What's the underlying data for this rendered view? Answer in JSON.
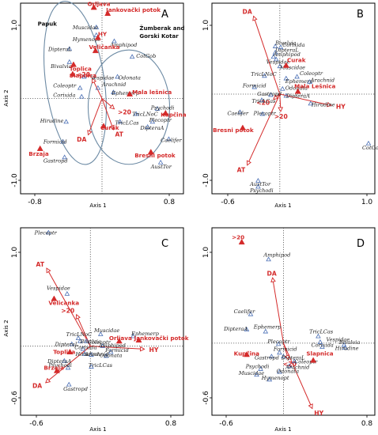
{
  "chart_data": [
    {
      "panel": "A",
      "type": "scatter",
      "xlabel": "Axis 1",
      "ylabel": "Axis 2",
      "xticks": [
        "-0.8",
        "0.8"
      ],
      "yticks": [
        "1.0",
        "-1.0"
      ],
      "xlim": [
        -1.0,
        1.0
      ],
      "ylim": [
        -1.1,
        1.1
      ],
      "region_labels": [
        {
          "text": "Papuk",
          "x": -0.79,
          "y": 0.84
        },
        {
          "text": "Žumberak and",
          "x": 0.46,
          "y": 0.79
        },
        {
          "text": "Gorski Kotar",
          "x": 0.46,
          "y": 0.7
        }
      ],
      "sites": [
        {
          "name": "Orljava",
          "x": -0.1,
          "y": 1.05,
          "lx": -0.18,
          "ly": 1.07
        },
        {
          "name": "Jankovački potok",
          "x": 0.07,
          "y": 0.98,
          "lx": 0.05,
          "ly": 1.0
        },
        {
          "name": "HY",
          "x": -0.05,
          "y": 0.7,
          "lx": -0.05,
          "ly": 0.72
        },
        {
          "name": "Veličanka",
          "x": -0.08,
          "y": 0.55,
          "lx": -0.16,
          "ly": 0.57
        },
        {
          "name": "Toplica",
          "x": -0.35,
          "y": 0.39,
          "lx": -0.4,
          "ly": 0.32
        },
        {
          "name": "Slapnica",
          "x": -0.36,
          "y": 0.28,
          "lx": -0.4,
          "ly": 0.24
        },
        {
          "name": "Mala lešnica",
          "x": 0.34,
          "y": 0.05,
          "lx": 0.37,
          "ly": 0.05
        },
        {
          "name": "Kupčina",
          "x": 0.78,
          "y": -0.17,
          "lx": 0.72,
          "ly": -0.21
        },
        {
          "name": "Curak",
          "x": 0.02,
          "y": -0.32,
          "lx": -0.02,
          "ly": -0.36
        },
        {
          "name": "Bresni potok",
          "x": 0.6,
          "y": -0.62,
          "lx": 0.4,
          "ly": -0.68
        },
        {
          "name": "Brzaja",
          "x": -0.76,
          "y": -0.58,
          "lx": -0.9,
          "ly": -0.66
        }
      ],
      "env_labels": [
        {
          "name": "<20",
          "x": -0.12,
          "y": 0.23
        },
        {
          "name": ">20",
          "x": 0.15,
          "y": -0.12
        },
        {
          "name": "AT",
          "x": 0.14,
          "y": -0.36
        },
        {
          "name": "DA",
          "x": -0.17,
          "y": -0.42
        }
      ],
      "taxa": [
        {
          "name": "Muscidae",
          "x": -0.07,
          "y": 0.82,
          "lx": -0.36,
          "ly": 0.8
        },
        {
          "name": "Hymenopt",
          "x": -0.07,
          "y": 0.73,
          "lx": -0.36,
          "ly": 0.66
        },
        {
          "name": "Amphipod",
          "x": 0.15,
          "y": 0.66,
          "lx": 0.1,
          "ly": 0.6
        },
        {
          "name": "DipteraL",
          "x": -0.4,
          "y": 0.57,
          "lx": -0.66,
          "ly": 0.55
        },
        {
          "name": "Bivalvia",
          "x": -0.4,
          "y": 0.42,
          "lx": -0.63,
          "ly": 0.35
        },
        {
          "name": "Vespidae",
          "x": -0.22,
          "y": 0.25,
          "lx": -0.14,
          "ly": 0.22
        },
        {
          "name": "Odonata",
          "x": 0.19,
          "y": 0.25,
          "lx": 0.2,
          "ly": 0.22
        },
        {
          "name": "CotGob",
          "x": 0.37,
          "y": 0.48,
          "lx": 0.42,
          "ly": 0.47
        },
        {
          "name": "Coleoptr",
          "x": -0.27,
          "y": 0.12,
          "lx": -0.6,
          "ly": 0.13
        },
        {
          "name": "Arachnid",
          "x": -0.05,
          "y": 0.12,
          "lx": 0.0,
          "ly": 0.14
        },
        {
          "name": "Corixida",
          "x": -0.25,
          "y": 0.02,
          "lx": -0.6,
          "ly": 0.02
        },
        {
          "name": "Ephemerp",
          "x": 0.14,
          "y": 0.07,
          "lx": 0.12,
          "ly": 0.04
        },
        {
          "name": "Psychodi",
          "x": 0.68,
          "y": -0.12,
          "lx": 0.6,
          "ly": -0.13
        },
        {
          "name": "TricLNoC",
          "x": 0.42,
          "y": -0.18,
          "lx": 0.37,
          "ly": -0.2
        },
        {
          "name": "Plecoptr",
          "x": 0.62,
          "y": -0.27,
          "lx": 0.58,
          "ly": -0.27
        },
        {
          "name": "Hirudine",
          "x": -0.44,
          "y": -0.27,
          "lx": -0.76,
          "ly": -0.28
        },
        {
          "name": "TricLCas",
          "x": 0.22,
          "y": -0.27,
          "lx": 0.16,
          "ly": -0.3
        },
        {
          "name": "DipteraA",
          "x": 0.56,
          "y": -0.33,
          "lx": 0.47,
          "ly": -0.36
        },
        {
          "name": "Caelifer",
          "x": 0.82,
          "y": -0.47,
          "lx": 0.72,
          "ly": -0.5
        },
        {
          "name": "Formicid",
          "x": -0.48,
          "y": -0.5,
          "lx": -0.72,
          "ly": -0.52
        },
        {
          "name": "Gastropd",
          "x": -0.46,
          "y": -0.68,
          "lx": -0.72,
          "ly": -0.74
        },
        {
          "name": "AustTor",
          "x": 0.72,
          "y": -0.74,
          "lx": 0.6,
          "ly": -0.81
        }
      ]
    },
    {
      "panel": "B",
      "type": "scatter",
      "xlabel": "Axis 1",
      "ylabel": "",
      "xticks": [
        "-0.6",
        "1.0"
      ],
      "yticks": [
        "1.0",
        "-1.0"
      ],
      "xlim": [
        -0.75,
        1.05
      ],
      "ylim": [
        -1.15,
        1.05
      ],
      "sites": [
        {
          "name": "Curak",
          "x": 0.07,
          "y": 0.33,
          "lx": 0.08,
          "ly": 0.37
        },
        {
          "name": "Mala Lešnica",
          "x": 0.2,
          "y": 0.03,
          "lx": 0.16,
          "ly": 0.07
        },
        {
          "name": "Bresni potok",
          "x": -0.41,
          "y": -0.39,
          "lx": -0.74,
          "ly": -0.44
        }
      ],
      "env_labels": [
        {
          "name": "DA",
          "x": -0.29,
          "y": 0.9
        },
        {
          "name": "<20",
          "x": -0.07,
          "y": -0.06
        },
        {
          "name": ">20",
          "x": 0.01,
          "y": -0.2
        },
        {
          "name": "HY",
          "x": 0.57,
          "y": -0.13
        },
        {
          "name": "AT",
          "x": -0.36,
          "y": -0.82
        }
      ],
      "taxa": [
        {
          "name": "Bivalvia",
          "x": -0.05,
          "y": 0.55,
          "lx": -0.05,
          "ly": 0.57
        },
        {
          "name": "DipteraL",
          "x": -0.05,
          "y": 0.48,
          "lx": -0.05,
          "ly": 0.49
        },
        {
          "name": "Amphipod",
          "x": -0.07,
          "y": 0.43,
          "lx": -0.07,
          "ly": 0.44
        },
        {
          "name": "Corixida",
          "x": 0.01,
          "y": 0.54,
          "lx": 0.03,
          "ly": 0.55
        },
        {
          "name": "Vespidae",
          "x": -0.04,
          "y": 0.4,
          "lx": -0.15,
          "ly": 0.35
        },
        {
          "name": "TricLNoC",
          "x": -0.17,
          "y": 0.21,
          "lx": -0.32,
          "ly": 0.21
        },
        {
          "name": "Muscidae",
          "x": 0.0,
          "y": 0.32,
          "lx": 0.0,
          "ly": 0.29
        },
        {
          "name": "Ephemerp",
          "x": 0.07,
          "y": 0.18,
          "lx": 0.06,
          "ly": 0.13
        },
        {
          "name": "Arachnid",
          "x": 0.33,
          "y": 0.14,
          "lx": 0.34,
          "ly": 0.14
        },
        {
          "name": "Coleoptr",
          "x": 0.19,
          "y": 0.2,
          "lx": 0.22,
          "ly": 0.22
        },
        {
          "name": "Formicid",
          "x": -0.28,
          "y": 0.08,
          "lx": -0.41,
          "ly": 0.08
        },
        {
          "name": "Odonata",
          "x": 0.03,
          "y": 0.06,
          "lx": 0.06,
          "ly": 0.05
        },
        {
          "name": "Gastropd",
          "x": -0.1,
          "y": -0.01,
          "lx": -0.25,
          "ly": -0.02
        },
        {
          "name": "DipteraA",
          "x": 0.07,
          "y": -0.02,
          "lx": 0.07,
          "ly": -0.04
        },
        {
          "name": "TricLCas",
          "x": -0.2,
          "y": -0.07,
          "lx": -0.31,
          "ly": -0.1
        },
        {
          "name": "Hirudine",
          "x": 0.34,
          "y": -0.11,
          "lx": 0.35,
          "ly": -0.14
        },
        {
          "name": "Caelifer",
          "x": -0.44,
          "y": -0.21,
          "lx": -0.58,
          "ly": -0.24
        },
        {
          "name": "Plecoptr",
          "x": -0.19,
          "y": -0.23,
          "lx": -0.29,
          "ly": -0.24
        },
        {
          "name": "CotGob",
          "x": 0.98,
          "y": -0.57,
          "lx": 0.91,
          "ly": -0.64
        },
        {
          "name": "AustTor",
          "x": -0.24,
          "y": -1.0,
          "lx": -0.33,
          "ly": -1.06
        },
        {
          "name": "Psychodi",
          "x": -0.24,
          "y": -1.07,
          "lx": -0.33,
          "ly": -1.13
        }
      ]
    },
    {
      "panel": "C",
      "type": "scatter",
      "xlabel": "Axis 1",
      "ylabel": "Axis 2",
      "xticks": [
        "-0.6",
        "0.8"
      ],
      "yticks": [
        "1.0",
        "-0.6"
      ],
      "xlim": [
        -0.75,
        1.0
      ],
      "ylim": [
        -0.7,
        1.2
      ],
      "sites": [
        {
          "name": "Velicanka",
          "x": -0.39,
          "y": 0.48,
          "lx": -0.45,
          "ly": 0.42
        },
        {
          "name": "Orljava",
          "x": 0.31,
          "y": 0.05,
          "lx": 0.2,
          "ly": 0.06
        },
        {
          "name": "Jankovački potok",
          "x": 0.52,
          "y": 0.06,
          "lx": 0.47,
          "ly": 0.06
        },
        {
          "name": "Toplica",
          "x": -0.22,
          "y": -0.06,
          "lx": -0.4,
          "ly": -0.08
        },
        {
          "name": "Brzaja",
          "x": -0.36,
          "y": -0.25,
          "lx": -0.5,
          "ly": -0.24
        }
      ],
      "env_labels": [
        {
          "name": "AT",
          "x": -0.47,
          "y": 0.79
        },
        {
          "name": ">20",
          "x": -0.15,
          "y": 0.32
        },
        {
          "name": "HY",
          "x": 0.58,
          "y": -0.03
        },
        {
          "name": "DA",
          "x": -0.48,
          "y": -0.37
        }
      ],
      "taxa": [
        {
          "name": "Plecoptr",
          "x": -0.45,
          "y": 1.15,
          "lx": -0.6,
          "ly": 1.13
        },
        {
          "name": "Vespidae",
          "x": -0.25,
          "y": 0.53,
          "lx": -0.47,
          "ly": 0.57
        },
        {
          "name": "TricLNoC",
          "x": -0.13,
          "y": 0.08,
          "lx": -0.26,
          "ly": 0.1
        },
        {
          "name": "Muscidae",
          "x": 0.11,
          "y": 0.12,
          "lx": 0.04,
          "ly": 0.14
        },
        {
          "name": "Bivalvia",
          "x": -0.11,
          "y": 0.05,
          "lx": -0.11,
          "ly": 0.03
        },
        {
          "name": "Ephemerp",
          "x": 0.46,
          "y": 0.1,
          "lx": 0.44,
          "ly": 0.11
        },
        {
          "name": "Coleoptr",
          "x": -0.04,
          "y": 0.05,
          "lx": -0.03,
          "ly": 0.02
        },
        {
          "name": "DipteraL",
          "x": -0.2,
          "y": 0.02,
          "lx": -0.38,
          "ly": 0.0
        },
        {
          "name": "Corixida",
          "x": -0.08,
          "y": -0.03,
          "lx": -0.17,
          "ly": -0.03
        },
        {
          "name": "Amphipod",
          "x": 0.13,
          "y": 0.0,
          "lx": 0.09,
          "ly": -0.01
        },
        {
          "name": "Formicid",
          "x": 0.22,
          "y": -0.06,
          "lx": 0.16,
          "ly": -0.06
        },
        {
          "name": "Hirudine",
          "x": -0.06,
          "y": -0.08,
          "lx": -0.16,
          "ly": -0.1
        },
        {
          "name": "Arachnid",
          "x": 0.01,
          "y": -0.09,
          "lx": -0.06,
          "ly": -0.1
        },
        {
          "name": "Odonata",
          "x": 0.17,
          "y": -0.1,
          "lx": 0.1,
          "ly": -0.11
        },
        {
          "name": "DipteraA",
          "x": -0.28,
          "y": -0.15,
          "lx": -0.46,
          "ly": -0.17
        },
        {
          "name": "Psychodi",
          "x": -0.24,
          "y": -0.22,
          "lx": -0.45,
          "ly": -0.21
        },
        {
          "name": "TricLCas",
          "x": 0.01,
          "y": -0.21,
          "lx": -0.02,
          "ly": -0.21
        },
        {
          "name": "Gastropd",
          "x": -0.23,
          "y": -0.39,
          "lx": -0.29,
          "ly": -0.45
        }
      ]
    },
    {
      "panel": "D",
      "type": "scatter",
      "xlabel": "Axis 1",
      "ylabel": "",
      "xticks": [
        "-0.6",
        "0.8"
      ],
      "yticks": [
        "1.0",
        "-0.6"
      ],
      "xlim": [
        -0.72,
        0.92
      ],
      "ylim": [
        -0.75,
        1.2
      ],
      "sites": [
        {
          "name": ">20",
          "x": -0.42,
          "y": 1.05,
          "lx": -0.52,
          "ly": 1.08
        },
        {
          "name": "Kupčina",
          "x": -0.37,
          "y": -0.12,
          "lx": -0.5,
          "ly": -0.13
        },
        {
          "name": "Slapnica",
          "x": 0.3,
          "y": -0.18,
          "lx": 0.23,
          "ly": -0.13
        }
      ],
      "env_labels": [
        {
          "name": "DA",
          "x": -0.11,
          "y": 0.68
        },
        {
          "name": "<20",
          "x": 0.05,
          "y": -0.17
        },
        {
          "name": "HY",
          "x": 0.29,
          "y": -0.68
        }
      ],
      "taxa": [
        {
          "name": "Amphipod",
          "x": -0.15,
          "y": 0.87,
          "lx": -0.2,
          "ly": 0.9
        },
        {
          "name": "Caelifer",
          "x": -0.33,
          "y": 0.3,
          "lx": -0.5,
          "ly": 0.31
        },
        {
          "name": "DipteraA",
          "x": -0.37,
          "y": 0.14,
          "lx": -0.6,
          "ly": 0.13
        },
        {
          "name": "Ephemerp",
          "x": -0.18,
          "y": 0.12,
          "lx": -0.3,
          "ly": 0.15
        },
        {
          "name": "TricLCas",
          "x": 0.35,
          "y": 0.07,
          "lx": 0.26,
          "ly": 0.1
        },
        {
          "name": "Vespidae",
          "x": 0.37,
          "y": 0.01,
          "lx": 0.43,
          "ly": 0.02
        },
        {
          "name": "Bivalvia",
          "x": 0.61,
          "y": -0.02,
          "lx": 0.56,
          "ly": -0.01
        },
        {
          "name": "Corixida",
          "x": 0.39,
          "y": -0.04,
          "lx": 0.28,
          "ly": -0.04
        },
        {
          "name": "Hirudine",
          "x": 0.62,
          "y": -0.05,
          "lx": 0.52,
          "ly": -0.07
        },
        {
          "name": "Plecoptr",
          "x": -0.05,
          "y": -0.01,
          "lx": -0.16,
          "ly": 0.0
        },
        {
          "name": "Formicid",
          "x": -0.04,
          "y": -0.1,
          "lx": -0.1,
          "ly": -0.08
        },
        {
          "name": "Gastropd",
          "x": -0.12,
          "y": -0.14,
          "lx": -0.29,
          "ly": -0.17
        },
        {
          "name": "Coleoptr",
          "x": 0.11,
          "y": -0.19,
          "lx": 0.11,
          "ly": -0.21
        },
        {
          "name": "DipteraL",
          "x": 0.0,
          "y": -0.14,
          "lx": -0.02,
          "ly": -0.17
        },
        {
          "name": "Arachnid",
          "x": 0.06,
          "y": -0.24,
          "lx": 0.02,
          "ly": -0.27
        },
        {
          "name": "Psychodi",
          "x": -0.23,
          "y": -0.27,
          "lx": -0.38,
          "ly": -0.26
        },
        {
          "name": "Odonata",
          "x": -0.04,
          "y": -0.3,
          "lx": -0.07,
          "ly": -0.31
        },
        {
          "name": "Muscidae",
          "x": -0.27,
          "y": -0.33,
          "lx": -0.45,
          "ly": -0.33
        },
        {
          "name": "Hymenopt",
          "x": -0.14,
          "y": -0.38,
          "lx": -0.22,
          "ly": -0.38
        }
      ]
    }
  ]
}
